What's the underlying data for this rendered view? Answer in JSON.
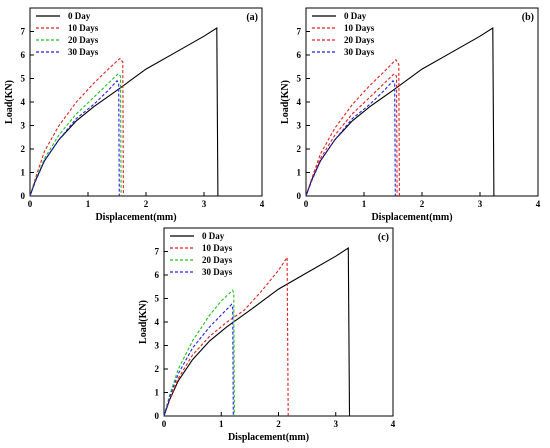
{
  "chart_data": [
    {
      "type": "line",
      "panel_label": "(a)",
      "xlabel": "Displacement(mm)",
      "ylabel": "Load(KN)",
      "xlim": [
        0,
        4
      ],
      "ylim": [
        0,
        8
      ],
      "xticks": [
        "0",
        "1",
        "2",
        "3",
        "4"
      ],
      "yticks": [
        "0",
        "1",
        "2",
        "3",
        "4",
        "5",
        "6",
        "7"
      ],
      "legend_position": "top-left",
      "series": [
        {
          "name": "0 Day",
          "color": "#000000",
          "dash": "solid",
          "points": [
            [
              0,
              0
            ],
            [
              0.1,
              0.7
            ],
            [
              0.25,
              1.5
            ],
            [
              0.5,
              2.4
            ],
            [
              0.8,
              3.2
            ],
            [
              1.1,
              3.8
            ],
            [
              1.5,
              4.5
            ],
            [
              2.0,
              5.4
            ],
            [
              2.5,
              6.1
            ],
            [
              3.0,
              6.8
            ],
            [
              3.22,
              7.15
            ],
            [
              3.24,
              0
            ]
          ]
        },
        {
          "name": "10 Days",
          "color": "#e02020",
          "dash": "dashed",
          "points": [
            [
              0,
              0
            ],
            [
              0.1,
              0.8
            ],
            [
              0.25,
              1.9
            ],
            [
              0.5,
              3.0
            ],
            [
              0.8,
              4.0
            ],
            [
              1.1,
              4.8
            ],
            [
              1.35,
              5.4
            ],
            [
              1.55,
              5.85
            ],
            [
              1.6,
              5.7
            ],
            [
              1.61,
              0
            ]
          ]
        },
        {
          "name": "20 Days",
          "color": "#20c020",
          "dash": "dashed",
          "points": [
            [
              0,
              0
            ],
            [
              0.1,
              0.7
            ],
            [
              0.25,
              1.6
            ],
            [
              0.5,
              2.6
            ],
            [
              0.8,
              3.5
            ],
            [
              1.1,
              4.2
            ],
            [
              1.35,
              4.8
            ],
            [
              1.52,
              5.2
            ],
            [
              1.56,
              5.1
            ],
            [
              1.57,
              0
            ]
          ]
        },
        {
          "name": "30 Days",
          "color": "#2020e0",
          "dash": "dashed",
          "points": [
            [
              0,
              0
            ],
            [
              0.1,
              0.65
            ],
            [
              0.25,
              1.5
            ],
            [
              0.5,
              2.4
            ],
            [
              0.8,
              3.3
            ],
            [
              1.1,
              3.9
            ],
            [
              1.35,
              4.5
            ],
            [
              1.5,
              4.9
            ],
            [
              1.53,
              4.8
            ],
            [
              1.54,
              0
            ]
          ]
        }
      ]
    },
    {
      "type": "line",
      "panel_label": "(b)",
      "xlabel": "Displacement(mm)",
      "ylabel": "Load(KN)",
      "xlim": [
        0,
        4
      ],
      "ylim": [
        0,
        8
      ],
      "xticks": [
        "0",
        "1",
        "2",
        "3",
        "4"
      ],
      "yticks": [
        "0",
        "1",
        "2",
        "3",
        "4",
        "5",
        "6",
        "7"
      ],
      "legend_position": "top-left",
      "series": [
        {
          "name": "0 Day",
          "color": "#000000",
          "dash": "solid",
          "points": [
            [
              0,
              0
            ],
            [
              0.1,
              0.7
            ],
            [
              0.25,
              1.5
            ],
            [
              0.5,
              2.4
            ],
            [
              0.8,
              3.2
            ],
            [
              1.1,
              3.8
            ],
            [
              1.5,
              4.5
            ],
            [
              2.0,
              5.4
            ],
            [
              2.5,
              6.1
            ],
            [
              3.0,
              6.8
            ],
            [
              3.22,
              7.15
            ],
            [
              3.24,
              0
            ]
          ]
        },
        {
          "name": "10 Days",
          "color": "#e02020",
          "dash": "dashed",
          "points": [
            [
              0,
              0
            ],
            [
              0.1,
              0.75
            ],
            [
              0.25,
              1.8
            ],
            [
              0.5,
              2.9
            ],
            [
              0.8,
              3.9
            ],
            [
              1.1,
              4.7
            ],
            [
              1.35,
              5.3
            ],
            [
              1.55,
              5.8
            ],
            [
              1.6,
              5.6
            ],
            [
              1.61,
              0
            ]
          ]
        },
        {
          "name": "20 Days",
          "color": "#e02020",
          "dash": "dashed",
          "points": [
            [
              0,
              0
            ],
            [
              0.1,
              0.7
            ],
            [
              0.25,
              1.6
            ],
            [
              0.5,
              2.6
            ],
            [
              0.8,
              3.5
            ],
            [
              1.1,
              4.2
            ],
            [
              1.35,
              4.8
            ],
            [
              1.52,
              5.2
            ],
            [
              1.56,
              5.1
            ],
            [
              1.57,
              0
            ]
          ]
        },
        {
          "name": "30 Days",
          "color": "#2020e0",
          "dash": "dashed",
          "points": [
            [
              0,
              0
            ],
            [
              0.1,
              0.65
            ],
            [
              0.25,
              1.5
            ],
            [
              0.5,
              2.4
            ],
            [
              0.8,
              3.3
            ],
            [
              1.1,
              3.9
            ],
            [
              1.35,
              4.5
            ],
            [
              1.5,
              4.9
            ],
            [
              1.53,
              4.8
            ],
            [
              1.54,
              0
            ]
          ]
        }
      ]
    },
    {
      "type": "line",
      "panel_label": "(c)",
      "xlabel": "Displacement(mm)",
      "ylabel": "Load(KN)",
      "xlim": [
        0,
        4
      ],
      "ylim": [
        0,
        8
      ],
      "xticks": [
        "0",
        "1",
        "2",
        "3",
        "4"
      ],
      "yticks": [
        "0",
        "1",
        "2",
        "3",
        "4",
        "5",
        "6",
        "7"
      ],
      "legend_position": "top-left",
      "series": [
        {
          "name": "0 Day",
          "color": "#000000",
          "dash": "solid",
          "points": [
            [
              0,
              0
            ],
            [
              0.1,
              0.7
            ],
            [
              0.25,
              1.5
            ],
            [
              0.5,
              2.4
            ],
            [
              0.8,
              3.2
            ],
            [
              1.1,
              3.8
            ],
            [
              1.5,
              4.5
            ],
            [
              2.0,
              5.4
            ],
            [
              2.5,
              6.1
            ],
            [
              3.0,
              6.8
            ],
            [
              3.22,
              7.15
            ],
            [
              3.24,
              0
            ]
          ]
        },
        {
          "name": "10 Days",
          "color": "#e02020",
          "dash": "dashed",
          "points": [
            [
              0,
              0
            ],
            [
              0.1,
              0.7
            ],
            [
              0.25,
              1.6
            ],
            [
              0.5,
              2.6
            ],
            [
              0.8,
              3.4
            ],
            [
              1.1,
              4.0
            ],
            [
              1.4,
              4.5
            ],
            [
              1.7,
              5.3
            ],
            [
              2.0,
              6.2
            ],
            [
              2.15,
              6.75
            ],
            [
              2.17,
              0
            ]
          ]
        },
        {
          "name": "20 Days",
          "color": "#20c020",
          "dash": "dashed",
          "points": [
            [
              0,
              0
            ],
            [
              0.1,
              0.9
            ],
            [
              0.25,
              2.0
            ],
            [
              0.5,
              3.2
            ],
            [
              0.8,
              4.3
            ],
            [
              1.0,
              4.9
            ],
            [
              1.2,
              5.35
            ],
            [
              1.22,
              5.2
            ],
            [
              1.23,
              0
            ]
          ]
        },
        {
          "name": "30 Days",
          "color": "#2020e0",
          "dash": "dashed",
          "points": [
            [
              0,
              0
            ],
            [
              0.1,
              0.8
            ],
            [
              0.25,
              1.8
            ],
            [
              0.5,
              2.9
            ],
            [
              0.8,
              3.8
            ],
            [
              1.0,
              4.3
            ],
            [
              1.18,
              4.75
            ],
            [
              1.2,
              4.6
            ],
            [
              1.21,
              0
            ]
          ]
        }
      ]
    }
  ]
}
